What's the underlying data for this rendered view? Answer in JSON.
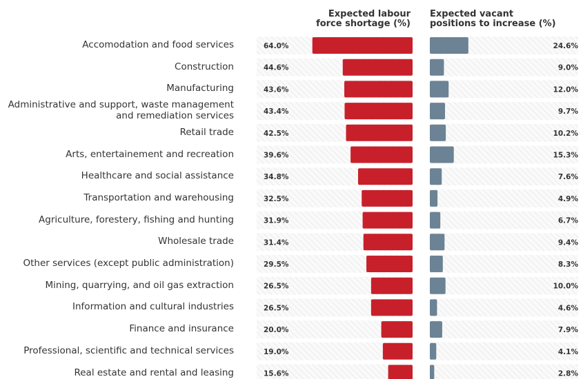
{
  "chart_data": {
    "type": "butterfly-bar",
    "categories": [
      "Accomodation and food services",
      "Construction",
      "Manufacturing",
      "Administrative and support, waste management and remediation services",
      "Retail trade",
      "Arts, entertainement and recreation",
      "Healthcare and social assistance",
      "Transportation and warehousing",
      "Agriculture, forestery, fishing and hunting",
      "Wholesale trade",
      "Other services (except public administration)",
      "Mining, quarrying, and oil gas extraction",
      "Information and cultural industries",
      "Finance and insurance",
      "Professional, scientific and technical services",
      "Real estate and rental and leasing"
    ],
    "series": [
      {
        "name": "Expected labour force shortage (%)",
        "color": "#c8202a",
        "values": [
          64.0,
          44.6,
          43.6,
          43.4,
          42.5,
          39.6,
          34.8,
          32.5,
          31.9,
          31.4,
          29.5,
          26.5,
          26.5,
          20.0,
          19.0,
          15.6
        ],
        "value_labels": [
          "64.0%",
          "44.6%",
          "43.6%",
          "43.4%",
          "42.5%",
          "39.6%",
          "34.8%",
          "32.5%",
          "31.9%",
          "31.4%",
          "29.5%",
          "26.5%",
          "26.5%",
          "20.0%",
          "19.0%",
          "15.6%"
        ]
      },
      {
        "name": "Expected vacant positions to increase (%)",
        "color": "#6b8394",
        "values": [
          24.6,
          9.0,
          12.0,
          9.7,
          10.2,
          15.3,
          7.6,
          4.9,
          6.7,
          9.4,
          8.3,
          10.0,
          4.6,
          7.9,
          4.1,
          2.8
        ],
        "value_labels": [
          "24.6%",
          "9.0%",
          "12.0%",
          "9.7%",
          "10.2%",
          "15.3%",
          "7.6%",
          "4.9%",
          "6.7%",
          "9.4%",
          "8.3%",
          "10.0%",
          "4.6%",
          "7.9%",
          "4.1%",
          "2.8%"
        ]
      }
    ]
  }
}
